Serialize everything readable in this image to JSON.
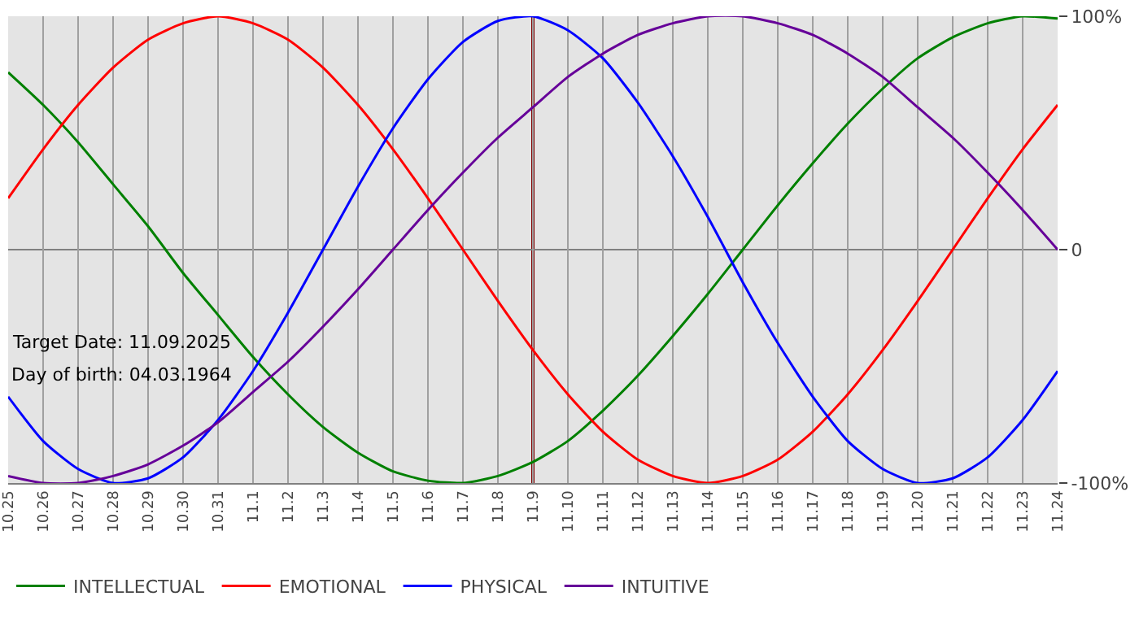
{
  "chart_data": {
    "type": "line",
    "categories": [
      "10.25",
      "10.26",
      "10.27",
      "10.28",
      "10.29",
      "10.30",
      "10.31",
      "11.1",
      "11.2",
      "11.3",
      "11.4",
      "11.5",
      "11.6",
      "11.7",
      "11.8",
      "11.9",
      "11.10",
      "11.11",
      "11.12",
      "11.13",
      "11.14",
      "11.15",
      "11.16",
      "11.17",
      "11.18",
      "11.19",
      "11.20",
      "11.21",
      "11.22",
      "11.23",
      "11.24"
    ],
    "series": [
      {
        "name": "INTELLECTUAL",
        "color": "#008000",
        "values": [
          76,
          62,
          46,
          28,
          10,
          -10,
          -28,
          -46,
          -62,
          -76,
          -87,
          -95,
          -99,
          -100,
          -97,
          -91,
          -82,
          -69,
          -54,
          -37,
          -19,
          0,
          19,
          37,
          54,
          69,
          82,
          91,
          97,
          100,
          99
        ]
      },
      {
        "name": "EMOTIONAL",
        "color": "#ff0000",
        "values": [
          22,
          43,
          62,
          78,
          90,
          97,
          100,
          97,
          90,
          78,
          62,
          43,
          22,
          0,
          -22,
          -43,
          -62,
          -78,
          -90,
          -97,
          -100,
          -97,
          -90,
          -78,
          -62,
          -43,
          -22,
          0,
          22,
          43,
          62
        ]
      },
      {
        "name": "PHYSICAL",
        "color": "#0000ff",
        "values": [
          -63,
          -82,
          -94,
          -100,
          -98,
          -89,
          -73,
          -52,
          -27,
          0,
          27,
          52,
          73,
          89,
          98,
          100,
          94,
          82,
          63,
          40,
          14,
          -14,
          -40,
          -63,
          -82,
          -94,
          -100,
          -98,
          -89,
          -73,
          -52
        ]
      },
      {
        "name": "INTUITIVE",
        "color": "#660099",
        "values": [
          -97,
          -100,
          -100,
          -97,
          -92,
          -84,
          -74,
          -61,
          -48,
          -33,
          -17,
          0,
          17,
          33,
          48,
          61,
          74,
          84,
          92,
          97,
          100,
          100,
          97,
          92,
          84,
          74,
          61,
          48,
          33,
          17,
          0
        ]
      }
    ],
    "ylim": [
      -100,
      100
    ],
    "yticks": [
      {
        "value": 100,
        "label": "100%"
      },
      0,
      {
        "value": -100,
        "label": "-100%"
      }
    ],
    "ref_lines": [
      {
        "axis": "x",
        "value": "11.9",
        "color": "#800000"
      },
      {
        "axis": "y",
        "value": 0,
        "color": "#808080"
      }
    ],
    "annotations": [
      "Target Date: 11.09.2025",
      "Day of birth: 04.03.1964"
    ],
    "grid": "x",
    "legend": "bottom",
    "marker": "none",
    "line_style": "solid"
  }
}
